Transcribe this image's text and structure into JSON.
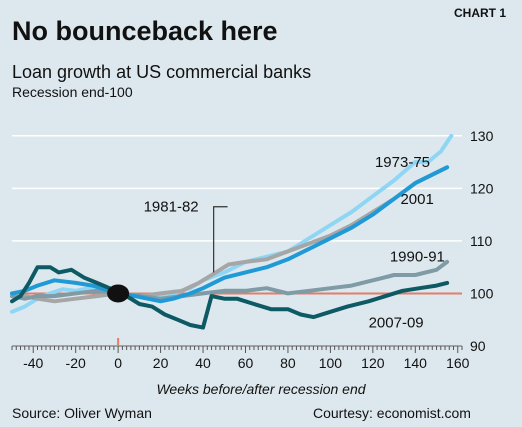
{
  "header": {
    "chart_label": "CHART 1",
    "title": "No bounceback here",
    "subtitle": "Loan growth at US commercial banks",
    "note": "Recession end-100"
  },
  "footer": {
    "source": "Source:  Oliver Wyman",
    "courtesy": "Courtesy: economist.com"
  },
  "colors": {
    "background": "#dde8ee",
    "grid": "#ffffff",
    "reference_line": "#e47c6a",
    "series_1973_75": "#8fd6f4",
    "series_1981_82": "#a6a6a6",
    "series_1990_91": "#7f9ba6",
    "series_2001": "#1f9ad6",
    "series_2007_09": "#0e5a64",
    "marker": "#111111"
  },
  "chart_data": {
    "type": "line",
    "title": "No bounceback here",
    "subtitle": "Loan growth at US commercial banks",
    "note": "Recession end-100",
    "xlabel": "Weeks before/after recession end",
    "ylabel": "",
    "x_ticks": [
      -40,
      -20,
      0,
      20,
      40,
      60,
      80,
      100,
      120,
      140,
      160
    ],
    "y_ticks": [
      90,
      100,
      110,
      120,
      130
    ],
    "xlim": [
      -50,
      162
    ],
    "ylim": [
      90,
      133
    ],
    "grid": true,
    "y_axis_side": "right",
    "reference_line": 100,
    "marker": {
      "x": 0,
      "y": 100
    },
    "series": [
      {
        "name": "1973-75",
        "color": "#8fd6f4",
        "points": [
          [
            -50,
            96.5
          ],
          [
            -44,
            97.5
          ],
          [
            -38,
            99
          ],
          [
            -32,
            100
          ],
          [
            -26,
            100.8
          ],
          [
            -20,
            100.5
          ],
          [
            -14,
            101
          ],
          [
            -8,
            100.5
          ],
          [
            0,
            100
          ],
          [
            8,
            99.5
          ],
          [
            14,
            99
          ],
          [
            20,
            99.5
          ],
          [
            26,
            100
          ],
          [
            34,
            101
          ],
          [
            40,
            102.5
          ],
          [
            50,
            104
          ],
          [
            60,
            106
          ],
          [
            70,
            107
          ],
          [
            80,
            108
          ],
          [
            90,
            110.5
          ],
          [
            100,
            113
          ],
          [
            110,
            115.5
          ],
          [
            120,
            118.5
          ],
          [
            130,
            121.5
          ],
          [
            140,
            125
          ],
          [
            146,
            125
          ],
          [
            152,
            127
          ],
          [
            157,
            130
          ]
        ]
      },
      {
        "name": "1981-82",
        "color": "#a6a6a6",
        "points": [
          [
            -50,
            100
          ],
          [
            -44,
            99.5
          ],
          [
            -38,
            99
          ],
          [
            -30,
            98.5
          ],
          [
            -20,
            99
          ],
          [
            -10,
            99.5
          ],
          [
            0,
            100
          ],
          [
            10,
            99.5
          ],
          [
            20,
            100
          ],
          [
            30,
            100.5
          ],
          [
            38,
            102
          ],
          [
            46,
            104
          ],
          [
            52,
            105.5
          ],
          [
            60,
            106
          ],
          [
            70,
            106.5
          ],
          [
            80,
            108
          ],
          [
            90,
            109.5
          ],
          [
            100,
            111
          ],
          [
            110,
            113
          ],
          [
            120,
            115.5
          ],
          [
            130,
            118
          ],
          [
            140,
            121
          ],
          [
            150,
            123
          ],
          [
            155,
            124
          ]
        ]
      },
      {
        "name": "1990-91",
        "color": "#7f9ba6",
        "points": [
          [
            -50,
            99.5
          ],
          [
            -44,
            99
          ],
          [
            -38,
            99.5
          ],
          [
            -30,
            99.5
          ],
          [
            -20,
            100
          ],
          [
            -10,
            100.5
          ],
          [
            0,
            100
          ],
          [
            10,
            99.5
          ],
          [
            20,
            99
          ],
          [
            30,
            99.5
          ],
          [
            40,
            100
          ],
          [
            50,
            100.5
          ],
          [
            60,
            100.5
          ],
          [
            70,
            101
          ],
          [
            80,
            100
          ],
          [
            90,
            100.5
          ],
          [
            100,
            101
          ],
          [
            110,
            101.5
          ],
          [
            120,
            102.5
          ],
          [
            130,
            103.5
          ],
          [
            140,
            103.5
          ],
          [
            150,
            104.5
          ],
          [
            155,
            106
          ]
        ]
      },
      {
        "name": "2001",
        "color": "#1f9ad6",
        "points": [
          [
            -50,
            100
          ],
          [
            -44,
            100.5
          ],
          [
            -38,
            101.5
          ],
          [
            -30,
            102.5
          ],
          [
            -20,
            102
          ],
          [
            -12,
            101.5
          ],
          [
            -4,
            100.5
          ],
          [
            0,
            100
          ],
          [
            8,
            99.5
          ],
          [
            14,
            99
          ],
          [
            20,
            98.5
          ],
          [
            26,
            99
          ],
          [
            34,
            100
          ],
          [
            40,
            101
          ],
          [
            50,
            103
          ],
          [
            60,
            104
          ],
          [
            70,
            105
          ],
          [
            80,
            106.5
          ],
          [
            90,
            108.5
          ],
          [
            100,
            110.5
          ],
          [
            110,
            112.5
          ],
          [
            120,
            115
          ],
          [
            130,
            118
          ],
          [
            140,
            121
          ],
          [
            150,
            123
          ],
          [
            155,
            124
          ]
        ]
      },
      {
        "name": "2007-09",
        "color": "#0e5a64",
        "points": [
          [
            -50,
            98.5
          ],
          [
            -46,
            99.5
          ],
          [
            -42,
            102
          ],
          [
            -38,
            105
          ],
          [
            -32,
            105
          ],
          [
            -28,
            104
          ],
          [
            -22,
            104.5
          ],
          [
            -16,
            103
          ],
          [
            -10,
            102
          ],
          [
            -4,
            101
          ],
          [
            0,
            100
          ],
          [
            4,
            99.5
          ],
          [
            10,
            98
          ],
          [
            16,
            97.5
          ],
          [
            22,
            96
          ],
          [
            28,
            95
          ],
          [
            34,
            94
          ],
          [
            40,
            93.5
          ],
          [
            44,
            99.5
          ],
          [
            50,
            99
          ],
          [
            56,
            99
          ],
          [
            64,
            98
          ],
          [
            72,
            97
          ],
          [
            80,
            97
          ],
          [
            86,
            96
          ],
          [
            92,
            95.5
          ],
          [
            100,
            96.5
          ],
          [
            108,
            97.5
          ],
          [
            118,
            98.5
          ],
          [
            126,
            99.5
          ],
          [
            134,
            100.5
          ],
          [
            142,
            101
          ],
          [
            150,
            101.5
          ],
          [
            155,
            102
          ]
        ]
      }
    ],
    "annotations": [
      {
        "text": "1973-75",
        "x": 121,
        "y": 125
      },
      {
        "text": "2001",
        "x": 133,
        "y": 118
      },
      {
        "text": "1981-82",
        "x": 12,
        "y": 116.5,
        "leader_to": {
          "x": 45,
          "y": 104
        }
      },
      {
        "text": "1990-91",
        "x": 128,
        "y": 107
      },
      {
        "text": "2007-09",
        "x": 118,
        "y": 94.5
      }
    ]
  }
}
